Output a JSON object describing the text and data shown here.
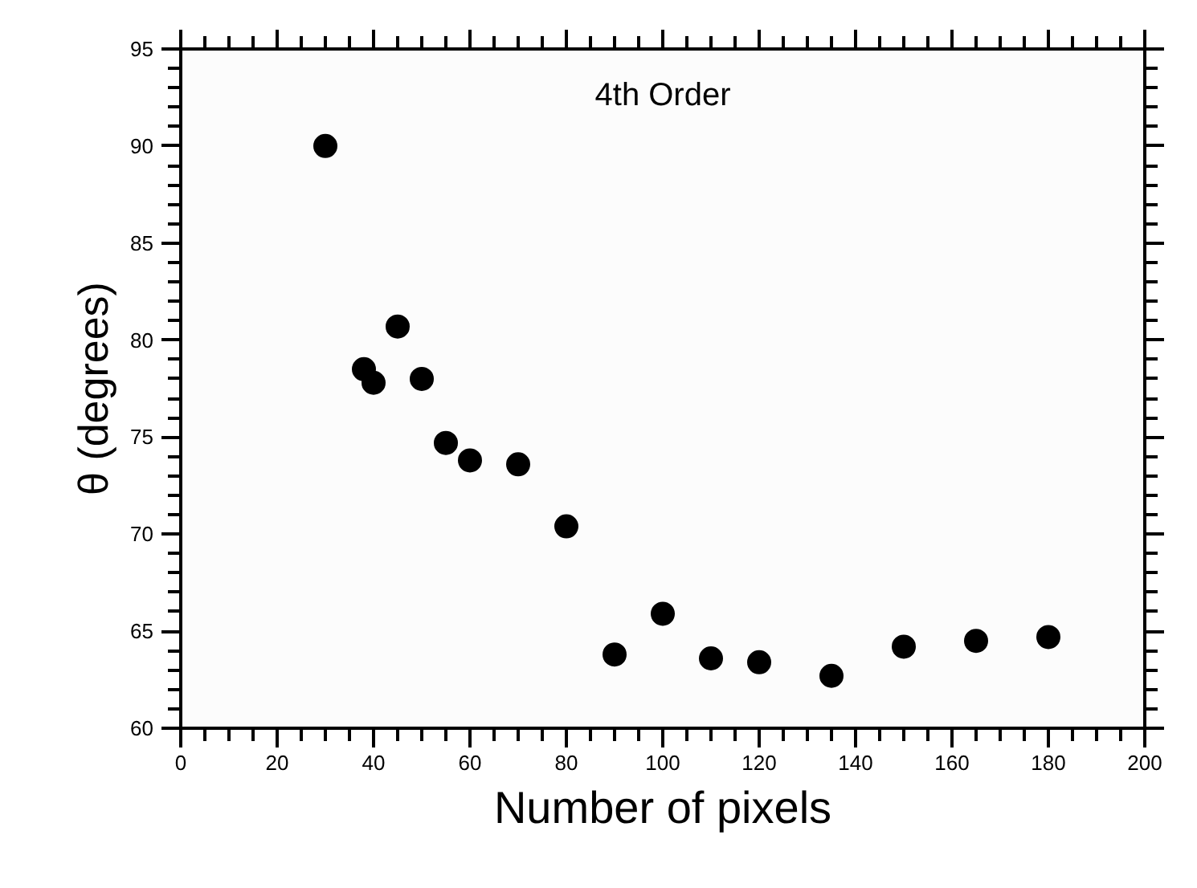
{
  "chart_data": {
    "type": "scatter",
    "title": "4th Order",
    "xlabel": "Number of pixels",
    "ylabel": "θ (degrees)",
    "x": [
      30,
      38,
      40,
      45,
      50,
      55,
      60,
      70,
      80,
      90,
      100,
      110,
      120,
      135,
      150,
      165,
      180
    ],
    "series": [
      {
        "color": "#000000",
        "values": [
          90.0,
          78.5,
          77.8,
          80.7,
          78.0,
          74.7,
          73.8,
          73.6,
          70.4,
          63.8,
          65.9,
          63.6,
          63.4,
          62.7,
          64.2,
          64.5,
          64.7
        ]
      }
    ],
    "xlim": [
      0,
      200
    ],
    "ylim": [
      60,
      95
    ],
    "xticks": [
      0,
      20,
      40,
      60,
      80,
      100,
      120,
      140,
      160,
      180,
      200
    ],
    "yticks": [
      60,
      65,
      70,
      75,
      80,
      85,
      90,
      95
    ],
    "marker": "circle",
    "grid": false
  }
}
